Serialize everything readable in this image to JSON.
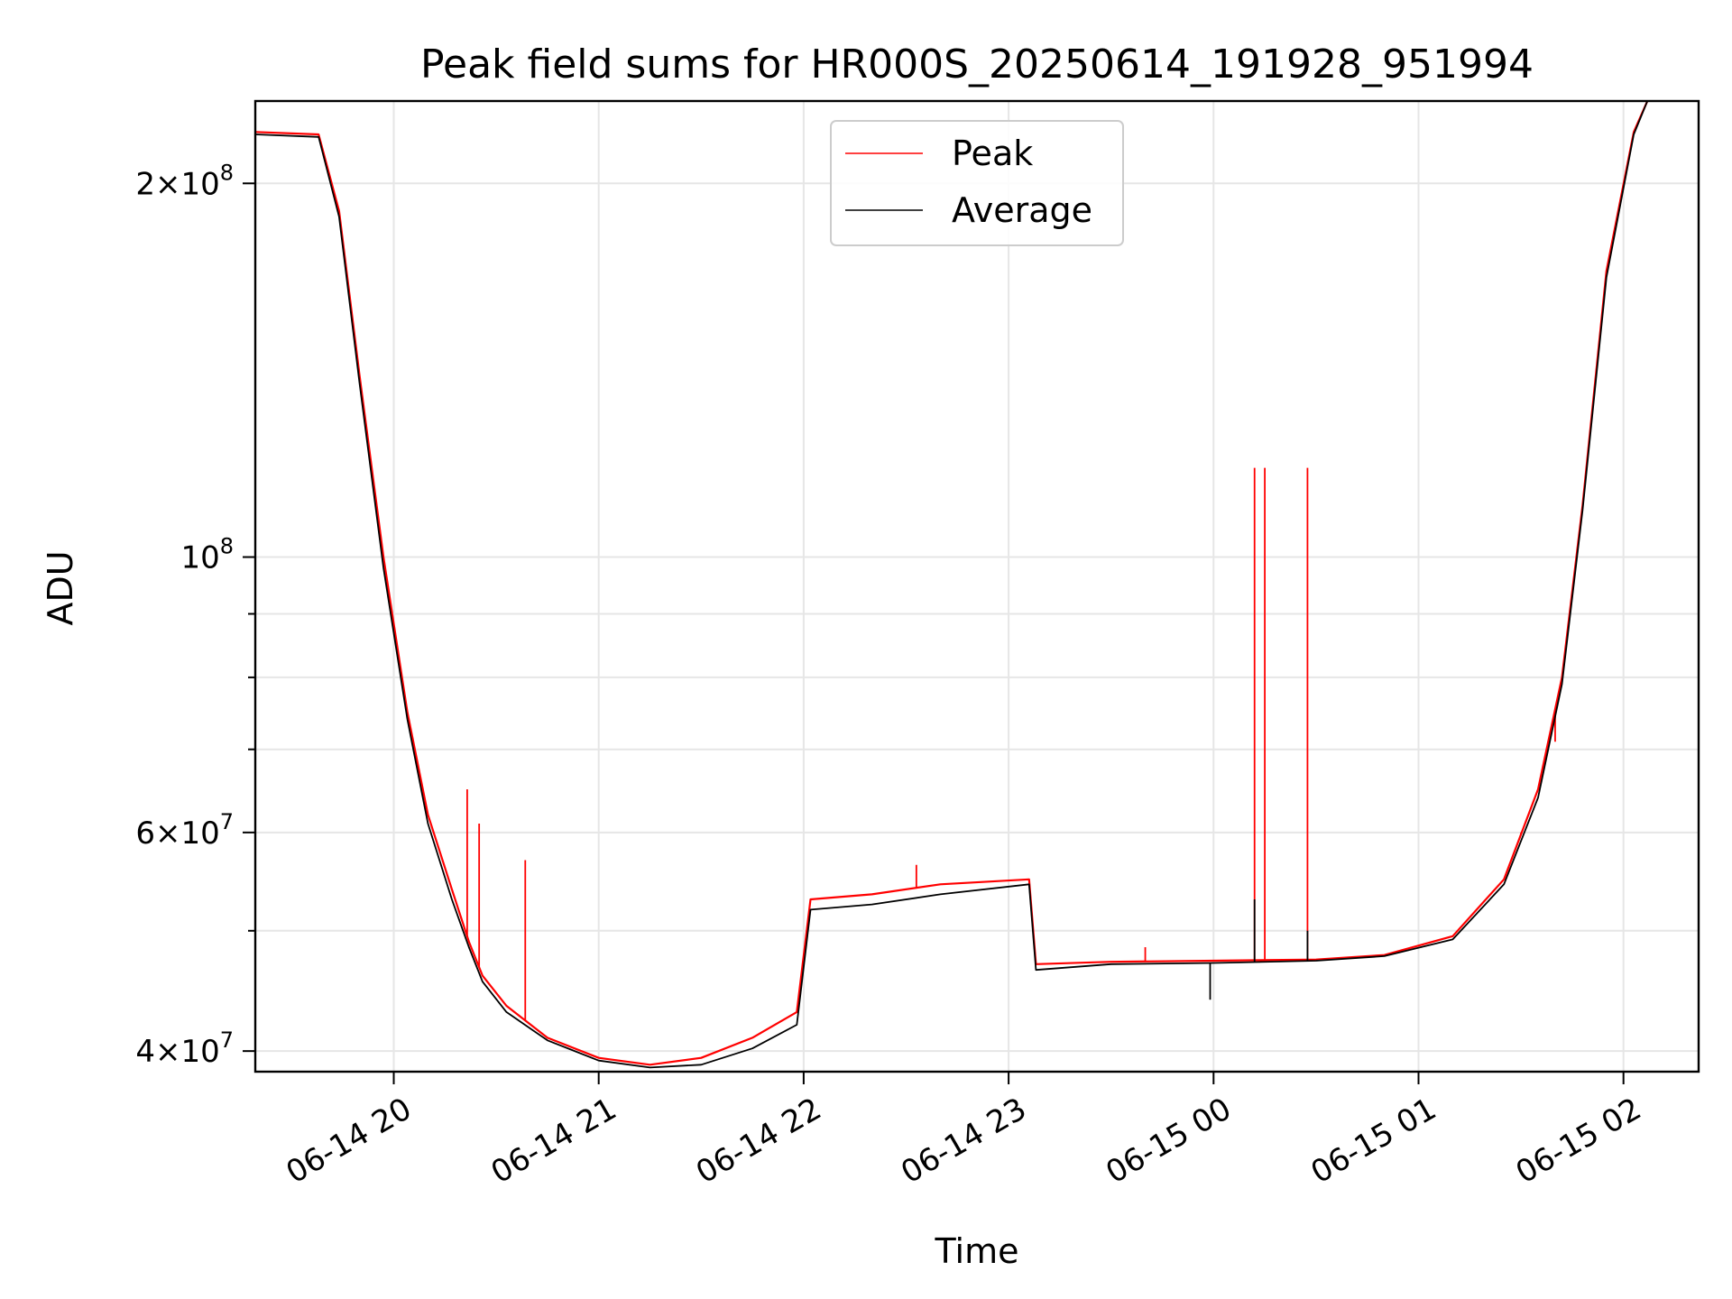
{
  "chart_data": {
    "type": "line",
    "title": "Peak field sums for HR000S_20250614_191928_951994",
    "xlabel": "Time",
    "ylabel": "ADU",
    "yscale": "log",
    "ylim": [
      38500000,
      233000000
    ],
    "xlim": [
      "2025-06-14 19:19:28",
      "2025-06-15 02:22:00"
    ],
    "x_ticks": [
      "2025-06-14 20:00",
      "2025-06-14 21:00",
      "2025-06-14 22:00",
      "2025-06-14 23:00",
      "2025-06-15 00:00",
      "2025-06-15 01:00",
      "2025-06-15 02:00"
    ],
    "x_tick_labels": [
      "06-14 20",
      "06-14 21",
      "06-14 22",
      "06-14 23",
      "06-15 00",
      "06-15 01",
      "06-15 02"
    ],
    "y_ticks": [
      40000000,
      60000000,
      100000000,
      200000000
    ],
    "y_tick_labels": [
      {
        "mantissa": "4",
        "exp": "7"
      },
      {
        "mantissa": "6",
        "exp": "7"
      },
      {
        "mantissa": "",
        "exp": "8"
      },
      {
        "mantissa": "2",
        "exp": "8"
      }
    ],
    "y_minor_ticks": [
      50000000,
      70000000,
      80000000,
      90000000
    ],
    "grid": true,
    "legend_position": "top-center",
    "series": [
      {
        "name": "Peak",
        "color": "#ff0000",
        "points": [
          [
            "2025-06-14 19:19:28",
            220000000
          ],
          [
            "2025-06-14 19:38:00",
            219000000
          ],
          [
            "2025-06-14 19:44:00",
            190000000
          ],
          [
            "2025-06-14 19:50:00",
            140000000
          ],
          [
            "2025-06-14 19:57:00",
            100000000
          ],
          [
            "2025-06-14 20:04:00",
            75000000
          ],
          [
            "2025-06-14 20:10:00",
            62000000
          ],
          [
            "2025-06-14 20:17:00",
            54000000
          ],
          [
            "2025-06-14 20:22:00",
            49000000
          ],
          [
            "2025-06-14 20:26:00",
            46000000
          ],
          [
            "2025-06-14 20:33:00",
            43500000
          ],
          [
            "2025-06-14 20:45:00",
            41000000
          ],
          [
            "2025-06-14 21:00:00",
            39500000
          ],
          [
            "2025-06-14 21:15:00",
            39000000
          ],
          [
            "2025-06-14 21:30:00",
            39500000
          ],
          [
            "2025-06-14 21:45:00",
            41000000
          ],
          [
            "2025-06-14 21:58:00",
            43000000
          ],
          [
            "2025-06-14 22:02:00",
            53000000
          ],
          [
            "2025-06-14 22:20:00",
            53500000
          ],
          [
            "2025-06-14 22:40:00",
            54500000
          ],
          [
            "2025-06-14 23:06:00",
            55000000
          ],
          [
            "2025-06-14 23:08:00",
            47000000
          ],
          [
            "2025-06-14 23:30:00",
            47200000
          ],
          [
            "2025-06-15 00:00:00",
            47300000
          ],
          [
            "2025-06-15 00:30:00",
            47400000
          ],
          [
            "2025-06-15 00:50:00",
            47800000
          ],
          [
            "2025-06-15 01:10:00",
            49500000
          ],
          [
            "2025-06-15 01:25:00",
            55000000
          ],
          [
            "2025-06-15 01:35:00",
            65000000
          ],
          [
            "2025-06-15 01:42:00",
            80000000
          ],
          [
            "2025-06-15 01:48:00",
            110000000
          ],
          [
            "2025-06-15 01:55:00",
            170000000
          ],
          [
            "2025-06-15 02:03:00",
            220000000
          ],
          [
            "2025-06-15 02:07:00",
            233000000
          ]
        ],
        "spikes": [
          [
            "2025-06-14 20:21:30",
            65000000
          ],
          [
            "2025-06-14 20:25:00",
            61000000
          ],
          [
            "2025-06-14 20:38:30",
            57000000
          ],
          [
            "2025-06-15 00:12:00",
            118000000
          ],
          [
            "2025-06-15 00:15:00",
            118000000
          ],
          [
            "2025-06-15 00:27:30",
            118000000
          ],
          [
            "2025-06-14 22:33:00",
            56500000
          ],
          [
            "2025-06-14 23:40:00",
            48500000
          ],
          [
            "2025-06-15 01:30:00",
            60000000
          ],
          [
            "2025-06-15 01:40:00",
            71000000
          ]
        ]
      },
      {
        "name": "Average",
        "color": "#000000",
        "points": [
          [
            "2025-06-14 19:19:28",
            219000000
          ],
          [
            "2025-06-14 19:38:00",
            218000000
          ],
          [
            "2025-06-14 19:44:00",
            188000000
          ],
          [
            "2025-06-14 19:50:00",
            138000000
          ],
          [
            "2025-06-14 19:57:00",
            98000000
          ],
          [
            "2025-06-14 20:04:00",
            74000000
          ],
          [
            "2025-06-14 20:10:00",
            61000000
          ],
          [
            "2025-06-14 20:17:00",
            53000000
          ],
          [
            "2025-06-14 20:22:00",
            48500000
          ],
          [
            "2025-06-14 20:26:00",
            45500000
          ],
          [
            "2025-06-14 20:33:00",
            43000000
          ],
          [
            "2025-06-14 20:45:00",
            40800000
          ],
          [
            "2025-06-14 21:00:00",
            39300000
          ],
          [
            "2025-06-14 21:15:00",
            38800000
          ],
          [
            "2025-06-14 21:30:00",
            39000000
          ],
          [
            "2025-06-14 21:45:00",
            40200000
          ],
          [
            "2025-06-14 21:58:00",
            42000000
          ],
          [
            "2025-06-14 22:02:00",
            52000000
          ],
          [
            "2025-06-14 22:20:00",
            52500000
          ],
          [
            "2025-06-14 22:40:00",
            53500000
          ],
          [
            "2025-06-14 23:06:00",
            54500000
          ],
          [
            "2025-06-14 23:08:00",
            46500000
          ],
          [
            "2025-06-14 23:30:00",
            47000000
          ],
          [
            "2025-06-15 00:00:00",
            47100000
          ],
          [
            "2025-06-15 00:30:00",
            47300000
          ],
          [
            "2025-06-15 00:50:00",
            47700000
          ],
          [
            "2025-06-15 01:10:00",
            49200000
          ],
          [
            "2025-06-15 01:25:00",
            54500000
          ],
          [
            "2025-06-15 01:35:00",
            64000000
          ],
          [
            "2025-06-15 01:42:00",
            79000000
          ],
          [
            "2025-06-15 01:48:00",
            109000000
          ],
          [
            "2025-06-15 01:55:00",
            168000000
          ],
          [
            "2025-06-15 02:03:00",
            219000000
          ],
          [
            "2025-06-15 02:07:00",
            233000000
          ]
        ],
        "spikes": [
          [
            "2025-06-15 00:12:00",
            53000000
          ],
          [
            "2025-06-15 00:27:30",
            50000000
          ],
          [
            "2025-06-14 23:59:00",
            44000000
          ]
        ]
      }
    ]
  }
}
